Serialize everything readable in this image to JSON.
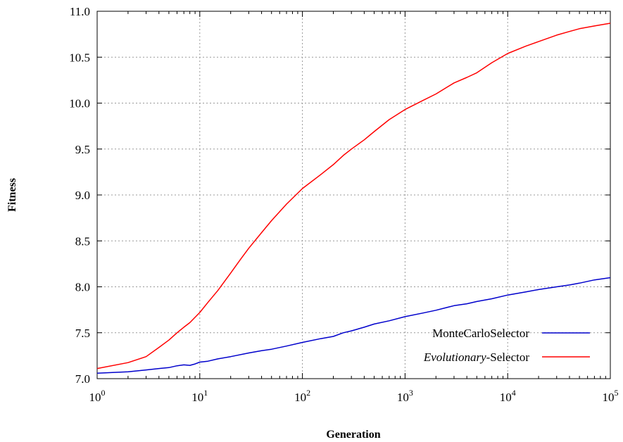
{
  "chart_data": {
    "type": "line",
    "xlabel": "Generation",
    "ylabel": "Fitness",
    "x_scale": "log10",
    "xlim": [
      1,
      100000
    ],
    "ylim": [
      7.0,
      11.0
    ],
    "grid": true,
    "legend_position": "bottom-right",
    "x_tick_values": [
      1,
      10,
      100,
      1000,
      10000,
      100000
    ],
    "x_tick_labels": [
      {
        "base": "10",
        "exp": "0"
      },
      {
        "base": "10",
        "exp": "1"
      },
      {
        "base": "10",
        "exp": "2"
      },
      {
        "base": "10",
        "exp": "3"
      },
      {
        "base": "10",
        "exp": "4"
      },
      {
        "base": "10",
        "exp": "5"
      }
    ],
    "y_ticks": [
      "7.0",
      "7.5",
      "8.0",
      "8.5",
      "9.0",
      "9.5",
      "10.0",
      "10.5",
      "11.0"
    ],
    "series": [
      {
        "name": "MonteCarloSelector",
        "color": "#0000cc",
        "points": [
          [
            1,
            7.06
          ],
          [
            2,
            7.075
          ],
          [
            3,
            7.095
          ],
          [
            4,
            7.11
          ],
          [
            5,
            7.12
          ],
          [
            6,
            7.14
          ],
          [
            7,
            7.15
          ],
          [
            8,
            7.145
          ],
          [
            9,
            7.16
          ],
          [
            10,
            7.18
          ],
          [
            12,
            7.19
          ],
          [
            15,
            7.215
          ],
          [
            20,
            7.24
          ],
          [
            30,
            7.28
          ],
          [
            40,
            7.305
          ],
          [
            50,
            7.32
          ],
          [
            70,
            7.355
          ],
          [
            100,
            7.395
          ],
          [
            150,
            7.435
          ],
          [
            200,
            7.46
          ],
          [
            250,
            7.5
          ],
          [
            300,
            7.52
          ],
          [
            400,
            7.56
          ],
          [
            500,
            7.595
          ],
          [
            700,
            7.63
          ],
          [
            1000,
            7.675
          ],
          [
            1500,
            7.715
          ],
          [
            2000,
            7.745
          ],
          [
            3000,
            7.795
          ],
          [
            4000,
            7.815
          ],
          [
            5000,
            7.84
          ],
          [
            7000,
            7.87
          ],
          [
            10000,
            7.91
          ],
          [
            15000,
            7.945
          ],
          [
            20000,
            7.97
          ],
          [
            30000,
            8.0
          ],
          [
            40000,
            8.02
          ],
          [
            50000,
            8.04
          ],
          [
            70000,
            8.075
          ],
          [
            100000,
            8.1
          ]
        ]
      },
      {
        "name_main": "Evolutionary",
        "name_rest": "-Selector",
        "color": "#ff0000",
        "points": [
          [
            1,
            7.11
          ],
          [
            2,
            7.175
          ],
          [
            3,
            7.24
          ],
          [
            4,
            7.34
          ],
          [
            5,
            7.42
          ],
          [
            6,
            7.5
          ],
          [
            7,
            7.56
          ],
          [
            8,
            7.61
          ],
          [
            10,
            7.72
          ],
          [
            12,
            7.83
          ],
          [
            15,
            7.96
          ],
          [
            20,
            8.15
          ],
          [
            25,
            8.3
          ],
          [
            30,
            8.42
          ],
          [
            40,
            8.59
          ],
          [
            50,
            8.72
          ],
          [
            70,
            8.9
          ],
          [
            100,
            9.07
          ],
          [
            150,
            9.22
          ],
          [
            200,
            9.33
          ],
          [
            250,
            9.43
          ],
          [
            300,
            9.5
          ],
          [
            400,
            9.6
          ],
          [
            500,
            9.69
          ],
          [
            700,
            9.82
          ],
          [
            1000,
            9.93
          ],
          [
            1500,
            10.03
          ],
          [
            2000,
            10.1
          ],
          [
            3000,
            10.22
          ],
          [
            4000,
            10.28
          ],
          [
            5000,
            10.33
          ],
          [
            7000,
            10.44
          ],
          [
            10000,
            10.54
          ],
          [
            15000,
            10.62
          ],
          [
            20000,
            10.67
          ],
          [
            30000,
            10.74
          ],
          [
            40000,
            10.78
          ],
          [
            50000,
            10.81
          ],
          [
            70000,
            10.84
          ],
          [
            100000,
            10.87
          ]
        ]
      }
    ]
  }
}
